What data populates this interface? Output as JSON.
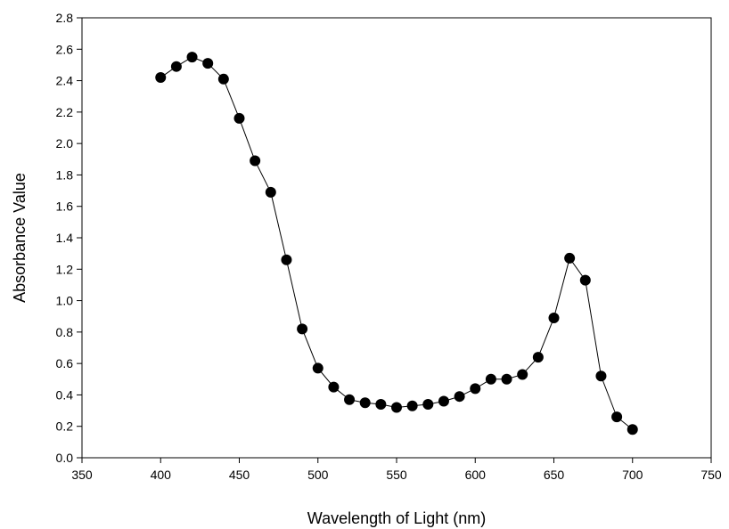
{
  "chart_data": {
    "type": "scatter",
    "title": "",
    "xlabel": "Wavelength of Light (nm)",
    "ylabel": "Absorbance Value",
    "xlim": [
      350,
      750
    ],
    "ylim": [
      0.0,
      2.8
    ],
    "x_ticks": [
      "350",
      "400",
      "450",
      "500",
      "550",
      "600",
      "650",
      "700",
      "750"
    ],
    "y_ticks": [
      "0.0",
      "0.2",
      "0.4",
      "0.6",
      "0.8",
      "1.0",
      "1.2",
      "1.4",
      "1.6",
      "1.8",
      "2.0",
      "2.2",
      "2.4",
      "2.6",
      "2.8"
    ],
    "grid": false,
    "legend": "none",
    "marker_color": "#000000",
    "line_color": "#000000",
    "series": [
      {
        "x": [
          400,
          410,
          420,
          430,
          440,
          450,
          460,
          470,
          480,
          490,
          500,
          510,
          520,
          530,
          540,
          550,
          560,
          570,
          580,
          590,
          600,
          610,
          620,
          630,
          640,
          650,
          660,
          670,
          680,
          690,
          700
        ],
        "y": [
          2.42,
          2.49,
          2.55,
          2.51,
          2.41,
          2.16,
          1.89,
          1.69,
          1.26,
          0.82,
          0.57,
          0.45,
          0.37,
          0.35,
          0.34,
          0.32,
          0.33,
          0.34,
          0.36,
          0.39,
          0.44,
          0.5,
          0.5,
          0.53,
          0.64,
          0.89,
          1.27,
          1.13,
          0.52,
          0.26,
          0.18
        ]
      }
    ]
  }
}
